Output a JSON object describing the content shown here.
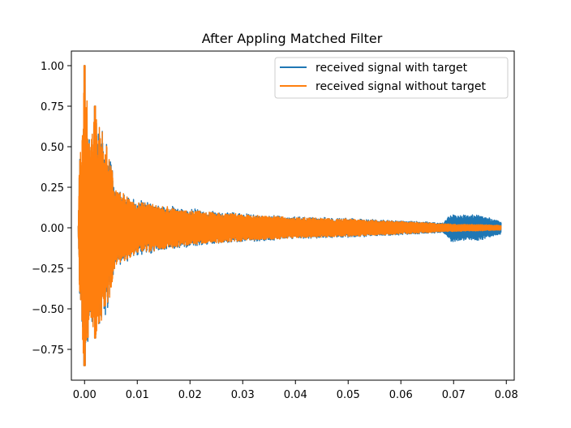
{
  "chart_data": {
    "type": "line",
    "title": "After Appling Matched Filter",
    "xlabel": "",
    "ylabel": "",
    "xlim": [
      -0.0025,
      0.0815
    ],
    "ylim": [
      -0.94,
      1.09
    ],
    "x_ticks": [
      0.0,
      0.01,
      0.02,
      0.03,
      0.04,
      0.05,
      0.06,
      0.07,
      0.08
    ],
    "x_tick_labels": [
      "0.00",
      "0.01",
      "0.02",
      "0.03",
      "0.04",
      "0.05",
      "0.06",
      "0.07",
      "0.08"
    ],
    "y_ticks": [
      -0.75,
      -0.5,
      -0.25,
      0.0,
      0.25,
      0.5,
      0.75,
      1.0
    ],
    "y_tick_labels": [
      "−0.75",
      "−0.50",
      "−0.25",
      "0.00",
      "0.25",
      "0.50",
      "0.75",
      "1.00"
    ],
    "grid": false,
    "legend_position": "top-right",
    "x_range": [
      -0.0012,
      0.079
    ],
    "series": [
      {
        "name": "received signal with target",
        "color": "#1f77b4",
        "envelope": [
          {
            "x": -0.0012,
            "amp": 0.02
          },
          {
            "x": -0.001,
            "amp": 0.38
          },
          {
            "x": 0.0,
            "amp": 1.0
          },
          {
            "x": 0.001,
            "amp": 0.55
          },
          {
            "x": 0.002,
            "amp": 0.75
          },
          {
            "x": 0.0045,
            "amp": 0.52
          },
          {
            "x": 0.006,
            "amp": 0.25
          },
          {
            "x": 0.01,
            "amp": 0.18
          },
          {
            "x": 0.014,
            "amp": 0.15
          },
          {
            "x": 0.02,
            "amp": 0.12
          },
          {
            "x": 0.03,
            "amp": 0.09
          },
          {
            "x": 0.04,
            "amp": 0.07
          },
          {
            "x": 0.05,
            "amp": 0.06
          },
          {
            "x": 0.06,
            "amp": 0.045
          },
          {
            "x": 0.068,
            "amp": 0.03
          },
          {
            "x": 0.0695,
            "amp": 0.09
          },
          {
            "x": 0.075,
            "amp": 0.08
          },
          {
            "x": 0.079,
            "amp": 0.04
          }
        ]
      },
      {
        "name": "received signal without target",
        "color": "#ff7f0e",
        "envelope": [
          {
            "x": -0.0012,
            "amp": 0.02
          },
          {
            "x": -0.001,
            "amp": 0.38
          },
          {
            "x": 0.0,
            "amp": 1.0
          },
          {
            "x": 0.001,
            "amp": 0.55
          },
          {
            "x": 0.002,
            "amp": 0.75
          },
          {
            "x": 0.0045,
            "amp": 0.5
          },
          {
            "x": 0.006,
            "amp": 0.24
          },
          {
            "x": 0.01,
            "amp": 0.17
          },
          {
            "x": 0.014,
            "amp": 0.14
          },
          {
            "x": 0.02,
            "amp": 0.11
          },
          {
            "x": 0.03,
            "amp": 0.085
          },
          {
            "x": 0.04,
            "amp": 0.065
          },
          {
            "x": 0.05,
            "amp": 0.055
          },
          {
            "x": 0.06,
            "amp": 0.04
          },
          {
            "x": 0.068,
            "amp": 0.025
          },
          {
            "x": 0.075,
            "amp": 0.02
          },
          {
            "x": 0.079,
            "amp": 0.015
          }
        ]
      }
    ]
  }
}
